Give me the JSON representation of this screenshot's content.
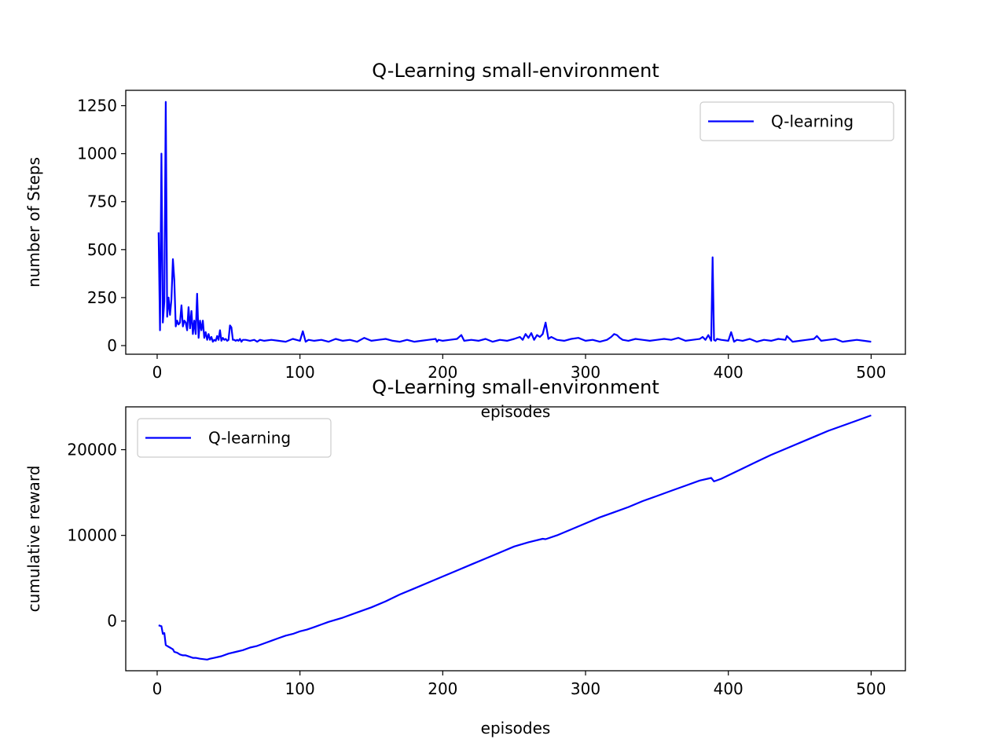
{
  "chart_data": [
    {
      "type": "line",
      "title": "Q-Learning small-environment",
      "xlabel": "episodes",
      "ylabel": "number of Steps",
      "xlim": [
        -22,
        524
      ],
      "ylim": [
        -45,
        1330
      ],
      "xticks": [
        0,
        100,
        200,
        300,
        400,
        500
      ],
      "yticks": [
        0,
        250,
        500,
        750,
        1000,
        1250
      ],
      "legend": "top-right",
      "grid": false,
      "series": [
        {
          "name": "Q-learning",
          "color": "#0000ff",
          "x": [
            1,
            2,
            3,
            4,
            5,
            6,
            7,
            8,
            9,
            10,
            11,
            12,
            13,
            14,
            15,
            16,
            17,
            18,
            19,
            20,
            21,
            22,
            23,
            24,
            25,
            26,
            27,
            28,
            29,
            30,
            31,
            32,
            33,
            34,
            35,
            36,
            37,
            38,
            39,
            40,
            41,
            42,
            43,
            44,
            45,
            46,
            47,
            48,
            49,
            50,
            51,
            52,
            53,
            54,
            55,
            56,
            57,
            58,
            59,
            60,
            62,
            65,
            68,
            70,
            72,
            75,
            80,
            85,
            90,
            95,
            100,
            102,
            104,
            106,
            110,
            115,
            120,
            125,
            130,
            135,
            140,
            145,
            150,
            155,
            160,
            165,
            170,
            175,
            180,
            185,
            190,
            195,
            196,
            197,
            200,
            205,
            210,
            213,
            215,
            220,
            225,
            230,
            235,
            240,
            245,
            250,
            254,
            256,
            258,
            260,
            262,
            264,
            266,
            268,
            270,
            272,
            274,
            276,
            280,
            285,
            290,
            295,
            300,
            305,
            310,
            315,
            318,
            320,
            322,
            324,
            326,
            330,
            335,
            340,
            345,
            350,
            355,
            360,
            365,
            370,
            375,
            380,
            382,
            384,
            386,
            388,
            389,
            390,
            391,
            392,
            395,
            400,
            402,
            404,
            406,
            410,
            415,
            420,
            425,
            430,
            435,
            440,
            441,
            445,
            450,
            455,
            460,
            462,
            465,
            470,
            475,
            480,
            485,
            490,
            495,
            500
          ],
          "y": [
            590,
            80,
            1000,
            120,
            230,
            1270,
            150,
            250,
            160,
            240,
            450,
            340,
            100,
            130,
            110,
            120,
            210,
            100,
            130,
            120,
            80,
            200,
            90,
            180,
            60,
            130,
            60,
            270,
            40,
            130,
            80,
            130,
            40,
            70,
            30,
            60,
            30,
            45,
            20,
            30,
            25,
            50,
            30,
            80,
            25,
            40,
            30,
            35,
            25,
            30,
            105,
            95,
            30,
            30,
            25,
            30,
            25,
            35,
            20,
            30,
            30,
            25,
            30,
            20,
            30,
            25,
            30,
            25,
            20,
            35,
            25,
            75,
            20,
            30,
            25,
            30,
            20,
            35,
            25,
            30,
            20,
            40,
            25,
            30,
            35,
            25,
            20,
            30,
            20,
            25,
            30,
            35,
            20,
            30,
            25,
            30,
            35,
            55,
            25,
            30,
            25,
            35,
            20,
            30,
            25,
            35,
            45,
            30,
            60,
            40,
            65,
            30,
            55,
            45,
            60,
            120,
            35,
            45,
            30,
            25,
            35,
            40,
            25,
            30,
            20,
            30,
            45,
            60,
            55,
            40,
            30,
            25,
            35,
            30,
            25,
            30,
            35,
            30,
            40,
            25,
            30,
            35,
            45,
            30,
            55,
            25,
            460,
            30,
            25,
            35,
            30,
            25,
            70,
            20,
            30,
            25,
            35,
            20,
            30,
            25,
            35,
            30,
            50,
            20,
            25,
            30,
            35,
            50,
            25,
            30,
            35,
            20,
            25,
            30,
            25,
            20
          ]
        }
      ]
    },
    {
      "type": "line",
      "title": "Q-Learning small-environment",
      "xlabel": "episodes",
      "ylabel": "cumulative reward",
      "xlim": [
        -22,
        524
      ],
      "ylim": [
        -5800,
        25000
      ],
      "xticks": [
        0,
        100,
        200,
        300,
        400,
        500
      ],
      "yticks": [
        0,
        10000,
        20000
      ],
      "legend": "top-left",
      "grid": false,
      "series": [
        {
          "name": "Q-learning",
          "color": "#0000ff",
          "x": [
            1,
            3,
            4,
            5,
            6,
            7,
            8,
            9,
            10,
            11,
            12,
            14,
            16,
            18,
            20,
            25,
            27,
            30,
            35,
            37,
            40,
            45,
            50,
            55,
            60,
            65,
            70,
            75,
            80,
            85,
            90,
            95,
            100,
            105,
            110,
            115,
            120,
            130,
            140,
            150,
            160,
            170,
            180,
            190,
            200,
            210,
            220,
            230,
            240,
            250,
            260,
            270,
            272,
            280,
            290,
            300,
            310,
            320,
            330,
            340,
            350,
            360,
            370,
            380,
            388,
            389,
            390,
            395,
            400,
            410,
            420,
            430,
            440,
            450,
            460,
            470,
            480,
            490,
            500
          ],
          "y": [
            -500,
            -600,
            -1500,
            -1400,
            -2800,
            -2900,
            -3000,
            -3100,
            -3200,
            -3300,
            -3600,
            -3700,
            -3900,
            -4000,
            -4000,
            -4300,
            -4300,
            -4400,
            -4500,
            -4400,
            -4300,
            -4100,
            -3800,
            -3600,
            -3400,
            -3100,
            -2900,
            -2600,
            -2300,
            -2000,
            -1700,
            -1500,
            -1200,
            -1000,
            -700,
            -400,
            -100,
            400,
            1000,
            1600,
            2300,
            3100,
            3800,
            4500,
            5200,
            5900,
            6600,
            7300,
            8000,
            8700,
            9200,
            9600,
            9550,
            10000,
            10700,
            11400,
            12100,
            12700,
            13300,
            14000,
            14600,
            15200,
            15800,
            16400,
            16700,
            16500,
            16300,
            16600,
            17000,
            17800,
            18600,
            19400,
            20100,
            20800,
            21500,
            22200,
            22800,
            23400,
            24000
          ]
        }
      ]
    }
  ]
}
